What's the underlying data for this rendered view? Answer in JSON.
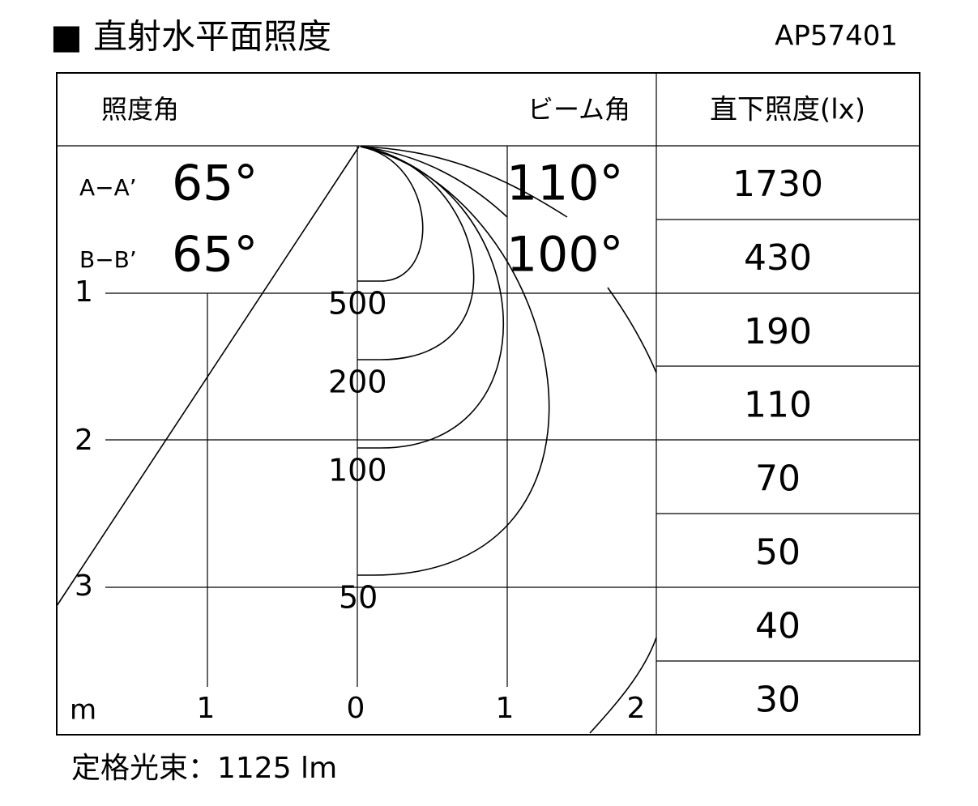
{
  "header": {
    "title": "■ 直射水平面照度",
    "model": "AP57401"
  },
  "panel": {
    "illuminance_angle_label": "照度角",
    "beam_angle_label": "ビーム角",
    "rows": [
      {
        "section": "A−A’",
        "illuminance_angle": "65°",
        "beam_angle": "110°"
      },
      {
        "section": "B−B’",
        "illuminance_angle": "65°",
        "beam_angle": "100°"
      }
    ]
  },
  "contours": [
    "500",
    "200",
    "100",
    "50"
  ],
  "axes": {
    "unit": "m",
    "y_ticks": [
      "1",
      "2",
      "3"
    ],
    "x_ticks": [
      "1",
      "0",
      "1",
      "2"
    ]
  },
  "table": {
    "header": "直下照度(lx)",
    "values": [
      1730,
      430,
      190,
      110,
      70,
      50,
      40,
      30
    ]
  },
  "footer": "定格光束：1125 lm"
}
